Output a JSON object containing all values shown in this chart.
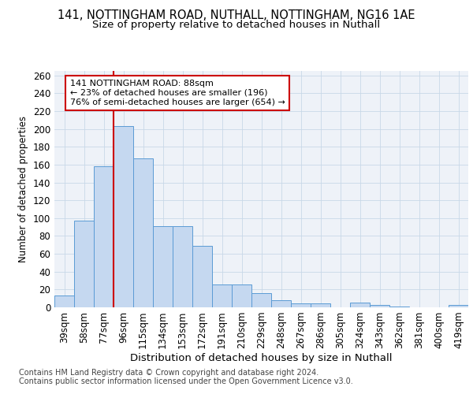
{
  "title1": "141, NOTTINGHAM ROAD, NUTHALL, NOTTINGHAM, NG16 1AE",
  "title2": "Size of property relative to detached houses in Nuthall",
  "xlabel": "Distribution of detached houses by size in Nuthall",
  "ylabel": "Number of detached properties",
  "categories": [
    "39sqm",
    "58sqm",
    "77sqm",
    "96sqm",
    "115sqm",
    "134sqm",
    "153sqm",
    "172sqm",
    "191sqm",
    "210sqm",
    "229sqm",
    "248sqm",
    "267sqm",
    "286sqm",
    "305sqm",
    "324sqm",
    "343sqm",
    "362sqm",
    "381sqm",
    "400sqm",
    "419sqm"
  ],
  "values": [
    13,
    97,
    158,
    203,
    167,
    91,
    91,
    69,
    26,
    26,
    16,
    8,
    4,
    4,
    0,
    5,
    3,
    1,
    0,
    0,
    3
  ],
  "bar_color": "#c5d8f0",
  "bar_edge_color": "#5b9bd5",
  "vline_x": 2.5,
  "vline_color": "#cc0000",
  "annotation_line1": "141 NOTTINGHAM ROAD: 88sqm",
  "annotation_line2": "← 23% of detached houses are smaller (196)",
  "annotation_line3": "76% of semi-detached houses are larger (654) →",
  "annotation_box_color": "white",
  "annotation_box_edge": "#cc0000",
  "ylim": [
    0,
    265
  ],
  "yticks": [
    0,
    20,
    40,
    60,
    80,
    100,
    120,
    140,
    160,
    180,
    200,
    220,
    240,
    260
  ],
  "grid_color": "#c8d8e8",
  "background_color": "#eef2f8",
  "footer1": "Contains HM Land Registry data © Crown copyright and database right 2024.",
  "footer2": "Contains public sector information licensed under the Open Government Licence v3.0.",
  "title1_fontsize": 10.5,
  "title2_fontsize": 9.5,
  "tick_fontsize": 8.5,
  "xlabel_fontsize": 9.5,
  "ylabel_fontsize": 8.5,
  "footer_fontsize": 7.0
}
